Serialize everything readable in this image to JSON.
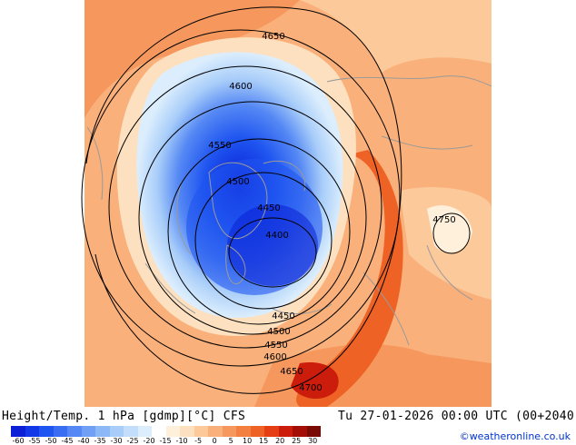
{
  "map": {
    "contours": [
      {
        "value": "4400"
      },
      {
        "value": "4450"
      },
      {
        "value": "4450"
      },
      {
        "value": "4500"
      },
      {
        "value": "4500"
      },
      {
        "value": "4550"
      },
      {
        "value": "4550"
      },
      {
        "value": "4600"
      },
      {
        "value": "4600"
      },
      {
        "value": "4650"
      },
      {
        "value": "4650"
      },
      {
        "value": "4700"
      },
      {
        "value": "4750"
      }
    ]
  },
  "footer": {
    "title": "Height/Temp. 1 hPa [gdmp][°C] CFS",
    "datetime": "Tu 27-01-2026 00:00 UTC (00+2040",
    "credit": "©weatheronline.co.uk"
  },
  "legend": {
    "colors": [
      "#0a1fd6",
      "#1238e8",
      "#1f55f0",
      "#3a6ef2",
      "#5588f4",
      "#70a0f5",
      "#8cb8f7",
      "#a8cdf9",
      "#c3defb",
      "#dceefd",
      "#ffffff",
      "#fff0dc",
      "#fde0bf",
      "#fcc99a",
      "#f9b07a",
      "#f6985d",
      "#f37f40",
      "#ee6325",
      "#e53e15",
      "#cc1c0c",
      "#a30f06",
      "#7a0a04"
    ],
    "ticks": [
      "-60",
      "-55",
      "-50",
      "-45",
      "-40",
      "-35",
      "-30",
      "-25",
      "-20",
      "-15",
      "-10",
      "-5",
      "0",
      "5",
      "10",
      "15",
      "20",
      "25",
      "30"
    ]
  }
}
